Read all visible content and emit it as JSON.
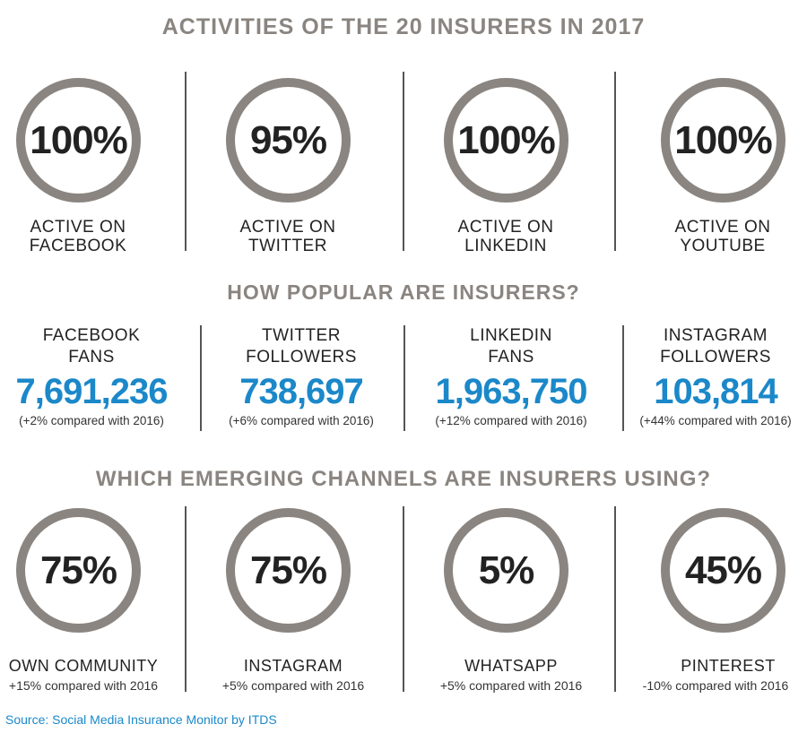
{
  "activities": {
    "title": "ACTIVITIES OF THE 20 INSURERS IN 2017",
    "items": [
      {
        "percent": "100%",
        "line1": "ACTIVE ON",
        "line2": "FACEBOOK"
      },
      {
        "percent": "95%",
        "line1": "ACTIVE ON",
        "line2": "TWITTER"
      },
      {
        "percent": "100%",
        "line1": "ACTIVE ON",
        "line2": "LINKEDIN"
      },
      {
        "percent": "100%",
        "line1": "ACTIVE ON",
        "line2": "YOUTUBE"
      }
    ]
  },
  "popularity": {
    "title": "HOW POPULAR ARE INSURERS?",
    "items": [
      {
        "line1": "FACEBOOK",
        "line2": "FANS",
        "value": "7,691,236",
        "note": "(+2% compared with 2016)"
      },
      {
        "line1": "TWITTER",
        "line2": "FOLLOWERS",
        "value": "738,697",
        "note": "(+6% compared with 2016)"
      },
      {
        "line1": "LINKEDIN",
        "line2": "FANS",
        "value": "1,963,750",
        "note": "(+12% compared with 2016)"
      },
      {
        "line1": "INSTAGRAM",
        "line2": "FOLLOWERS",
        "value": "103,814",
        "note": "(+44% compared with 2016)"
      }
    ]
  },
  "emerging": {
    "title": "WHICH EMERGING CHANNELS ARE INSURERS USING?",
    "items": [
      {
        "percent": "75%",
        "label": "OWN COMMUNITY",
        "note": "+15% compared with 2016"
      },
      {
        "percent": "75%",
        "label": "INSTAGRAM",
        "note": "+5% compared with 2016"
      },
      {
        "percent": "5%",
        "label": "WHATSAPP",
        "note": "+5% compared with 2016"
      },
      {
        "percent": "45%",
        "label": "PINTEREST",
        "note": "-10% compared with 2016"
      }
    ]
  },
  "source": "Source: Social Media Insurance Monitor by ITDS",
  "colors": {
    "accent_blue": "#1b88c9",
    "circle_grey": "#8a8580",
    "title_grey": "#8a8580",
    "text_dark": "#222222"
  }
}
